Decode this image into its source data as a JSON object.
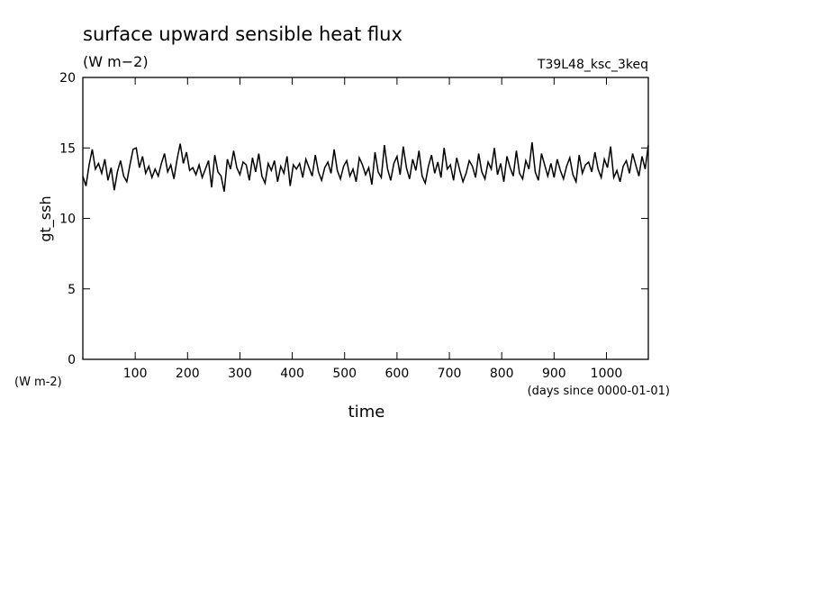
{
  "chart_data": {
    "type": "line",
    "title": "surface upward sensible heat flux",
    "subtitle": "(W m−2)",
    "annotation": "T39L48_ksc_3keq",
    "ylabel": "gt_ssh",
    "yunits": "(W m-2)",
    "xlabel": "time",
    "xunits": "(days since 0000-01-01)",
    "xlim": [
      0,
      1080
    ],
    "ylim": [
      0,
      20
    ],
    "xticks": [
      100,
      200,
      300,
      400,
      500,
      600,
      700,
      800,
      900,
      1000
    ],
    "yticks": [
      0,
      5,
      10,
      15,
      20
    ],
    "x": [
      0,
      6,
      12,
      18,
      24,
      30,
      36,
      42,
      48,
      54,
      60,
      66,
      72,
      78,
      84,
      90,
      96,
      102,
      108,
      114,
      120,
      126,
      132,
      138,
      144,
      150,
      156,
      162,
      168,
      174,
      180,
      186,
      192,
      198,
      204,
      210,
      216,
      222,
      228,
      234,
      240,
      246,
      252,
      258,
      264,
      270,
      276,
      282,
      288,
      294,
      300,
      306,
      312,
      318,
      324,
      330,
      336,
      342,
      348,
      354,
      360,
      366,
      372,
      378,
      384,
      390,
      396,
      402,
      408,
      414,
      420,
      426,
      432,
      438,
      444,
      450,
      456,
      462,
      468,
      474,
      480,
      486,
      492,
      498,
      504,
      510,
      516,
      522,
      528,
      534,
      540,
      546,
      552,
      558,
      564,
      570,
      576,
      582,
      588,
      594,
      600,
      606,
      612,
      618,
      624,
      630,
      636,
      642,
      648,
      654,
      660,
      666,
      672,
      678,
      684,
      690,
      696,
      702,
      708,
      714,
      720,
      726,
      732,
      738,
      744,
      750,
      756,
      762,
      768,
      774,
      780,
      786,
      792,
      798,
      804,
      810,
      816,
      822,
      828,
      834,
      840,
      846,
      852,
      858,
      864,
      870,
      876,
      882,
      888,
      894,
      900,
      906,
      912,
      918,
      924,
      930,
      936,
      942,
      948,
      954,
      960,
      966,
      972,
      978,
      984,
      990,
      996,
      1002,
      1008,
      1014,
      1020,
      1026,
      1032,
      1038,
      1044,
      1050,
      1056,
      1062,
      1068,
      1074,
      1080
    ],
    "series": [
      {
        "name": "gt_ssh",
        "color": "#000000",
        "values": [
          13.0,
          12.3,
          13.8,
          14.9,
          13.5,
          13.9,
          13.2,
          14.2,
          12.7,
          13.6,
          12.0,
          13.3,
          14.1,
          13.0,
          12.6,
          13.8,
          14.9,
          15.0,
          13.6,
          14.4,
          13.2,
          13.7,
          12.9,
          13.5,
          13.0,
          13.9,
          14.6,
          13.3,
          13.8,
          12.8,
          14.2,
          15.3,
          13.9,
          14.7,
          13.4,
          13.6,
          13.1,
          13.8,
          12.9,
          13.5,
          14.1,
          12.2,
          14.5,
          13.3,
          13.0,
          11.9,
          14.2,
          13.5,
          14.8,
          13.6,
          13.1,
          14.0,
          13.8,
          12.7,
          14.3,
          13.3,
          14.6,
          13.0,
          12.5,
          13.9,
          13.4,
          14.1,
          12.6,
          13.7,
          13.2,
          14.4,
          12.3,
          13.8,
          13.5,
          13.9,
          12.9,
          14.2,
          13.6,
          13.0,
          14.5,
          13.3,
          12.7,
          13.6,
          14.0,
          13.2,
          14.9,
          13.4,
          12.8,
          13.7,
          14.1,
          13.0,
          13.5,
          12.6,
          14.3,
          13.8,
          13.1,
          13.6,
          12.4,
          14.7,
          13.3,
          12.9,
          15.2,
          13.5,
          12.7,
          13.9,
          14.4,
          13.1,
          15.1,
          13.6,
          12.8,
          14.2,
          13.4,
          14.8,
          13.0,
          12.5,
          13.7,
          14.5,
          13.2,
          14.0,
          12.9,
          15.0,
          13.5,
          13.8,
          12.7,
          14.3,
          13.4,
          12.6,
          13.2,
          14.1,
          13.7,
          12.9,
          14.6,
          13.3,
          12.8,
          14.0,
          13.5,
          15.0,
          13.1,
          13.9,
          12.6,
          14.4,
          13.6,
          13.0,
          14.8,
          13.2,
          12.8,
          14.1,
          13.5,
          15.4,
          13.3,
          12.7,
          14.6,
          13.8,
          13.0,
          13.9,
          12.9,
          14.2,
          13.4,
          12.8,
          13.7,
          14.3,
          13.1,
          12.6,
          14.5,
          13.2,
          13.8,
          14.0,
          13.3,
          14.7,
          13.5,
          12.9,
          14.2,
          13.6,
          15.1,
          12.9,
          13.4,
          12.6,
          13.7,
          14.1,
          13.2,
          14.6,
          13.8,
          13.0,
          14.4,
          13.5,
          15.2
        ]
      }
    ]
  }
}
